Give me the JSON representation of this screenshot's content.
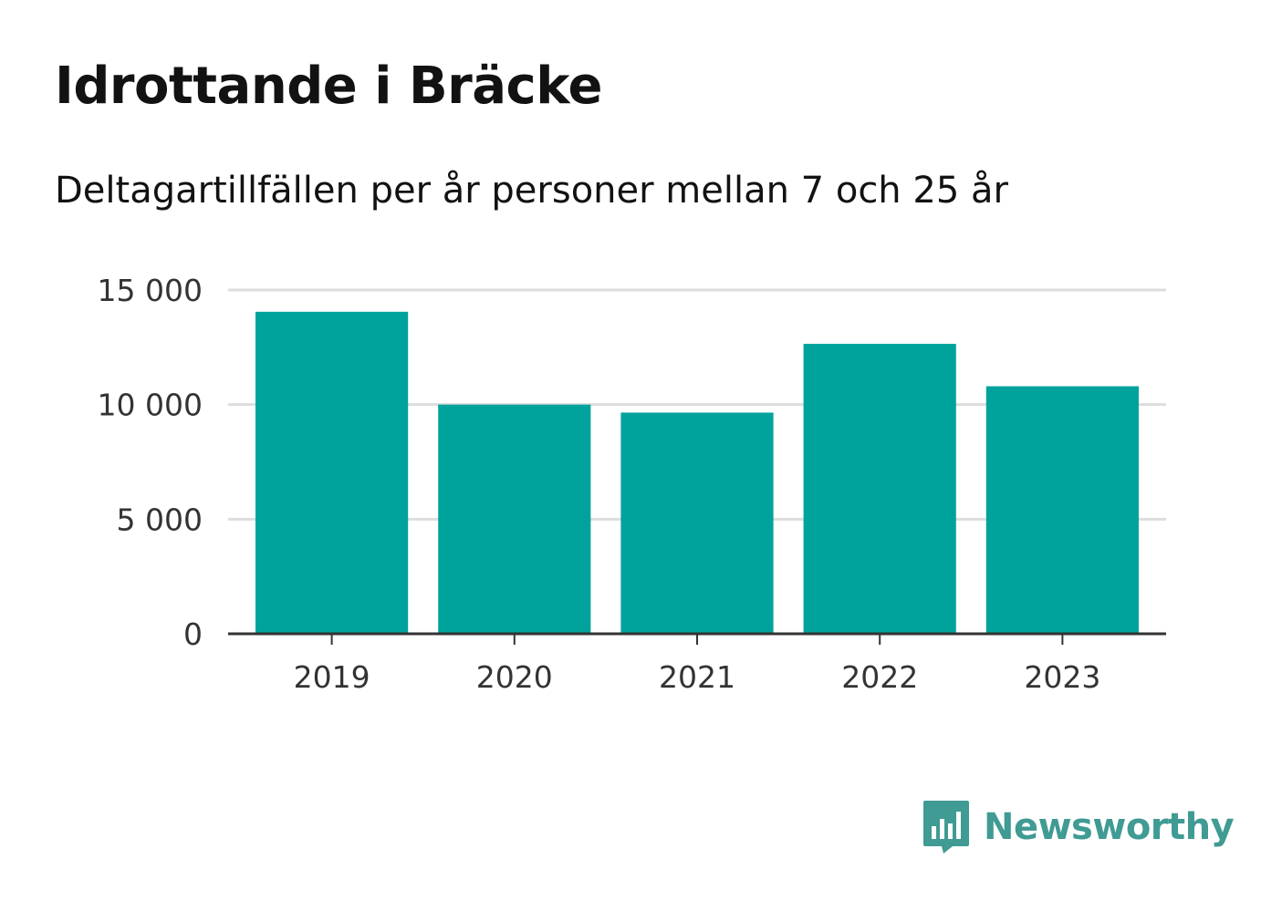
{
  "chart_data": {
    "type": "bar",
    "title": "Idrottande i Bräcke",
    "subtitle": "Deltagartillfällen per år personer mellan 7 och 25 år",
    "categories": [
      "2019",
      "2020",
      "2021",
      "2022",
      "2023"
    ],
    "values": [
      14050,
      10000,
      9650,
      12650,
      10800
    ],
    "ylim": [
      0,
      15000
    ],
    "yticks": [
      0,
      5000,
      10000,
      15000
    ],
    "ytick_labels": [
      "0",
      "5 000",
      "10 000",
      "15 000"
    ],
    "grid": true,
    "bar_color": "#00a39b"
  },
  "brand": {
    "name": "Newsworthy",
    "color": "#3f9b93",
    "icon": "bar-chart-speech-bubble-icon"
  }
}
